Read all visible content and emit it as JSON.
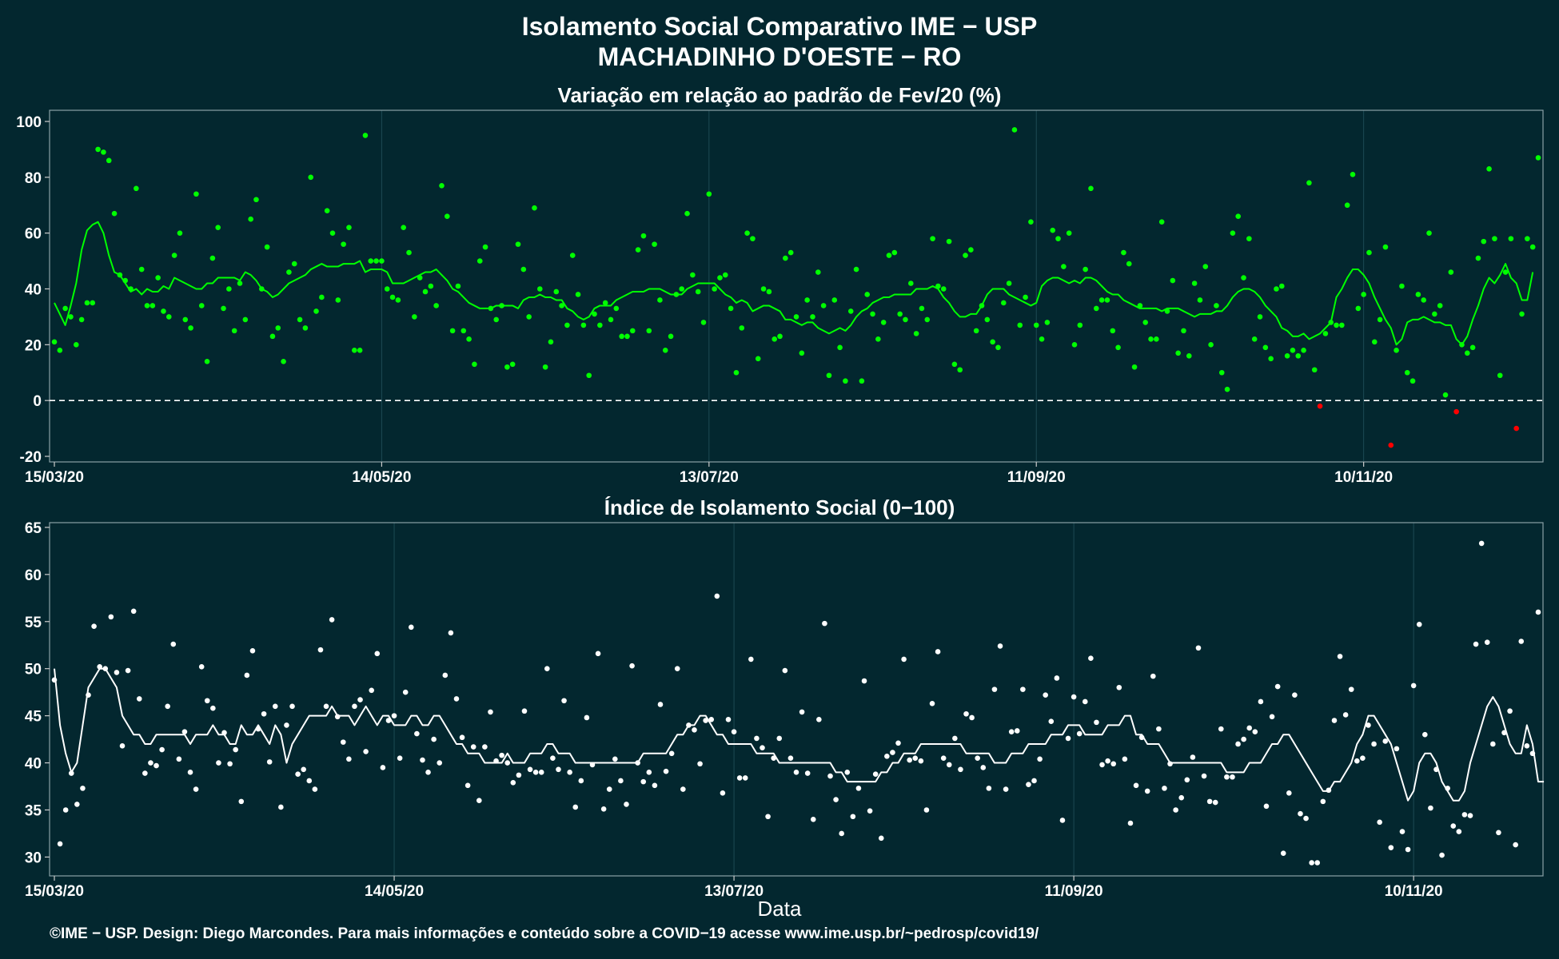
{
  "title_line1": "Isolamento Social Comparativo IME − USP",
  "title_line2": "MACHADINHO D'OESTE − RO",
  "xlabel": "Data",
  "footer": "©IME − USP. Design: Diego Marcondes. Para mais informações e conteúdo sobre a COVID−19 acesse www.ime.usp.br/~pedrosp/covid19/",
  "colors": {
    "background": "#03272f",
    "variation_points": "#00ff00",
    "variation_negative": "#ff0000",
    "index_points": "#ffffff",
    "grid": "#1d4a54"
  },
  "chart_data": [
    {
      "type": "scatter",
      "title": "Variação em relação ao padrão de Fev/20 (%)",
      "xlabel": "",
      "ylabel": "",
      "x_start": "15/03/20",
      "x_end": "09/12/20",
      "ylim": [
        -22,
        104
      ],
      "yticks": [
        -20,
        0,
        20,
        40,
        60,
        80,
        100
      ],
      "xtick_labels": [
        "15/03/20",
        "14/05/20",
        "13/07/20",
        "11/09/20",
        "10/11/20"
      ],
      "xtick_days": [
        0,
        60,
        120,
        180,
        240
      ],
      "reference_line": 0,
      "values": [
        21,
        18,
        33,
        30,
        20,
        29,
        35,
        35,
        90,
        89,
        86,
        67,
        45,
        43,
        40,
        76,
        47,
        34,
        34,
        44,
        32,
        30,
        52,
        60,
        29,
        26,
        74,
        34,
        14,
        51,
        62,
        33,
        40,
        25,
        42,
        29,
        65,
        72,
        40,
        55,
        23,
        26,
        14,
        46,
        49,
        29,
        26,
        80,
        32,
        37,
        68,
        60,
        36,
        56,
        62,
        18,
        18,
        95,
        50,
        50,
        50,
        40,
        37,
        36,
        62,
        53,
        30,
        44,
        39,
        41,
        34,
        77,
        66,
        25,
        41,
        25,
        22,
        13,
        50,
        55,
        33,
        29,
        34,
        12,
        13,
        56,
        47,
        30,
        69,
        40,
        12,
        21,
        39,
        34,
        27,
        52,
        38,
        27,
        9,
        31,
        27,
        35,
        29,
        33,
        23,
        23,
        25,
        54,
        59,
        25,
        56,
        36,
        18,
        23,
        38,
        40,
        67,
        45,
        39,
        28,
        74,
        40,
        44,
        45,
        33,
        10,
        26,
        60,
        58,
        15,
        40,
        39,
        22,
        23,
        51,
        53,
        30,
        17,
        36,
        30,
        46,
        34,
        9,
        36,
        19,
        7,
        32,
        47,
        7,
        38,
        31,
        22,
        28,
        52,
        53,
        31,
        29,
        42,
        24,
        33,
        29,
        58,
        41,
        40,
        57,
        13,
        11,
        52,
        54,
        25,
        34,
        29,
        21,
        19,
        35,
        42,
        97,
        27,
        37,
        64,
        27,
        22,
        28,
        61,
        58,
        48,
        60,
        20,
        27,
        47,
        76,
        33,
        36,
        36,
        25,
        19,
        53,
        49,
        12,
        34,
        28,
        22,
        22,
        64,
        32,
        43,
        17,
        25,
        16,
        42,
        36,
        48,
        20,
        34,
        10,
        4,
        60,
        66,
        44,
        58,
        22,
        30,
        19,
        15,
        40,
        41,
        16,
        18,
        16,
        18,
        78,
        11,
        -2,
        24,
        28,
        27,
        27,
        70,
        81,
        33,
        38,
        53,
        21,
        29,
        55,
        -16,
        18,
        41,
        10,
        7,
        38,
        36,
        60,
        31,
        34,
        2,
        46,
        -4,
        20,
        17,
        19,
        51,
        57,
        83,
        58,
        9,
        46,
        58,
        -10,
        31,
        58,
        55,
        87
      ],
      "moving_average": [
        35,
        31,
        27,
        34,
        42,
        54,
        61,
        63,
        64,
        60,
        52,
        46,
        45,
        42,
        39,
        40,
        38,
        40,
        39,
        39,
        41,
        40,
        44,
        43,
        42,
        41,
        40,
        40,
        42,
        42,
        44,
        44,
        44,
        44,
        43,
        46,
        45,
        43,
        40,
        39,
        37,
        38,
        40,
        42,
        43,
        44,
        45,
        47,
        48,
        49,
        48,
        48,
        48,
        49,
        49,
        49,
        50,
        46,
        47,
        47,
        47,
        46,
        42,
        42,
        42,
        43,
        44,
        45,
        46,
        46,
        47,
        45,
        43,
        40,
        39,
        37,
        35,
        34,
        33,
        33,
        33,
        34,
        34,
        34,
        34,
        33,
        36,
        37,
        37,
        38,
        37,
        37,
        36,
        36,
        33,
        32,
        30,
        29,
        30,
        33,
        34,
        34,
        34,
        36,
        37,
        38,
        39,
        39,
        39,
        40,
        40,
        40,
        39,
        38,
        38,
        38,
        40,
        41,
        42,
        42,
        42,
        42,
        40,
        38,
        37,
        35,
        36,
        35,
        32,
        33,
        34,
        34,
        33,
        32,
        29,
        29,
        28,
        27,
        28,
        28,
        26,
        25,
        24,
        25,
        26,
        25,
        27,
        30,
        32,
        33,
        35,
        36,
        37,
        37,
        38,
        38,
        38,
        38,
        40,
        40,
        40,
        41,
        40,
        37,
        35,
        32,
        30,
        30,
        31,
        31,
        34,
        38,
        40,
        40,
        40,
        38,
        37,
        36,
        35,
        34,
        35,
        41,
        43,
        44,
        44,
        43,
        42,
        43,
        42,
        44,
        44,
        43,
        41,
        39,
        38,
        38,
        36,
        35,
        34,
        33,
        33,
        33,
        33,
        32,
        33,
        33,
        33,
        32,
        31,
        30,
        31,
        31,
        31,
        32,
        32,
        34,
        37,
        39,
        40,
        40,
        39,
        37,
        34,
        32,
        30,
        26,
        25,
        23,
        23,
        24,
        22,
        23,
        24,
        26,
        28,
        37,
        40,
        44,
        47,
        47,
        45,
        42,
        37,
        33,
        29,
        26,
        20,
        22,
        28,
        29,
        29,
        30,
        29,
        28,
        28,
        27,
        27,
        22,
        20,
        23,
        29,
        34,
        40,
        44,
        42,
        45,
        49,
        44,
        42,
        36,
        36,
        46
      ]
    },
    {
      "type": "scatter",
      "title": "Índice de Isolamento Social (0−100)",
      "xlabel": "Data",
      "ylabel": "",
      "x_start": "15/03/20",
      "x_end": "09/12/20",
      "ylim": [
        28,
        65.5
      ],
      "yticks": [
        30,
        35,
        40,
        45,
        50,
        55,
        60,
        65
      ],
      "xtick_labels": [
        "15/03/20",
        "14/05/20",
        "13/07/20",
        "11/09/20",
        "10/11/20"
      ],
      "xtick_days": [
        0,
        60,
        120,
        180,
        240
      ],
      "values": [
        48.8,
        31.4,
        35.0,
        38.9,
        35.6,
        37.3,
        47.2,
        54.5,
        50.2,
        50.0,
        55.5,
        49.6,
        41.8,
        49.8,
        56.1,
        46.8,
        38.9,
        40.0,
        39.7,
        41.4,
        46.0,
        52.6,
        40.4,
        43.3,
        39.0,
        37.2,
        50.2,
        46.6,
        45.8,
        40.0,
        43.2,
        39.9,
        41.4,
        35.9,
        49.3,
        51.9,
        43.6,
        45.2,
        40.1,
        46.0,
        35.3,
        44.0,
        46.0,
        38.8,
        39.3,
        38.1,
        37.2,
        52.0,
        46.0,
        55.2,
        44.9,
        42.2,
        40.4,
        46.0,
        46.7,
        41.2,
        47.7,
        51.6,
        39.5,
        44.5,
        45.0,
        40.5,
        47.5,
        54.4,
        43.1,
        40.3,
        39.0,
        42.5,
        40.0,
        49.3,
        53.8,
        46.8,
        42.7,
        37.6,
        41.7,
        36.0,
        41.7,
        45.4,
        40.2,
        40.8,
        40.0,
        37.9,
        38.7,
        45.5,
        39.3,
        39.0,
        39.0,
        50.0,
        40.5,
        39.3,
        46.6,
        39.0,
        35.3,
        38.1,
        44.8,
        39.8,
        51.6,
        35.1,
        37.2,
        40.4,
        38.1,
        35.6,
        50.3,
        40.0,
        38.0,
        39.0,
        37.6,
        46.2,
        39.1,
        41.0,
        50.0,
        37.2,
        44.0,
        43.5,
        39.9,
        44.5,
        44.6,
        57.7,
        36.8,
        44.6,
        43.3,
        38.4,
        38.4,
        51.0,
        42.6,
        41.6,
        34.3,
        40.5,
        42.6,
        49.8,
        40.5,
        39.0,
        45.4,
        38.9,
        34.0,
        44.6,
        54.8,
        38.6,
        36.1,
        32.5,
        39.0,
        34.3,
        37.3,
        48.7,
        34.9,
        38.8,
        32.0,
        40.7,
        41.1,
        42.1,
        51.0,
        40.3,
        40.5,
        40.2,
        35.0,
        46.3,
        51.8,
        40.5,
        39.8,
        42.6,
        39.3,
        45.2,
        44.8,
        40.5,
        39.5,
        37.3,
        47.8,
        52.4,
        37.2,
        43.3,
        43.4,
        47.8,
        37.7,
        38.1,
        40.4,
        47.2,
        44.4,
        49.0,
        33.9,
        42.6,
        47.0,
        43.1,
        46.5,
        51.1,
        44.3,
        39.8,
        40.2,
        39.9,
        48.0,
        40.4,
        33.6,
        37.6,
        42.7,
        37.0,
        49.2,
        43.6,
        37.3,
        39.9,
        35.0,
        36.3,
        38.2,
        40.6,
        52.2,
        38.6,
        35.9,
        35.8,
        43.6,
        38.5,
        38.5,
        42.0,
        42.5,
        43.7,
        43.3,
        46.5,
        35.4,
        44.9,
        48.1,
        30.4,
        36.8,
        47.2,
        34.6,
        34.1,
        29.4,
        29.4,
        35.9,
        37.1,
        44.5,
        51.3,
        45.1,
        47.8,
        40.2,
        40.5,
        44.0,
        42.0,
        33.7,
        42.3,
        31.0,
        41.5,
        32.7,
        30.8,
        48.2,
        54.7,
        43.0,
        35.2,
        39.3,
        30.2,
        37.3,
        33.3,
        32.7,
        34.5,
        34.4,
        52.6,
        63.3,
        52.8,
        42.0,
        32.6,
        43.2,
        45.5,
        31.3,
        52.9,
        41.8,
        41.0,
        56.0
      ],
      "moving_average": [
        50,
        44,
        41,
        39,
        40,
        44,
        48,
        49,
        50,
        50,
        49,
        48,
        45,
        44,
        43,
        43,
        42,
        42,
        43,
        43,
        43,
        43,
        43,
        43,
        42,
        43,
        43,
        43,
        44,
        43,
        43,
        42,
        42,
        44,
        43,
        43,
        44,
        43,
        42,
        44,
        43,
        40,
        42,
        43,
        44,
        45,
        45,
        45,
        45,
        46,
        45,
        45,
        45,
        44,
        45,
        46,
        45,
        44,
        45,
        45,
        44,
        44,
        44,
        45,
        45,
        44,
        44,
        45,
        45,
        44,
        43,
        42,
        42,
        41,
        41,
        41,
        40,
        40,
        40,
        40,
        41,
        40,
        40,
        40,
        41,
        41,
        41,
        42,
        42,
        41,
        41,
        41,
        40,
        40,
        40,
        40,
        40,
        40,
        40,
        40,
        40,
        40,
        40,
        40,
        41,
        41,
        41,
        41,
        41,
        42,
        43,
        43,
        44,
        44,
        45,
        45,
        44,
        43,
        43,
        42,
        42,
        42,
        42,
        42,
        41,
        41,
        41,
        41,
        40,
        40,
        40,
        40,
        40,
        40,
        40,
        40,
        40,
        40,
        39,
        39,
        38,
        38,
        38,
        38,
        38,
        38,
        39,
        39,
        40,
        40,
        41,
        41,
        41,
        42,
        42,
        42,
        42,
        42,
        42,
        42,
        42,
        41,
        41,
        41,
        41,
        41,
        40,
        40,
        40,
        41,
        41,
        41,
        42,
        42,
        42,
        42,
        43,
        43,
        43,
        44,
        44,
        44,
        43,
        43,
        43,
        43,
        44,
        44,
        44,
        45,
        45,
        43,
        43,
        42,
        42,
        42,
        41,
        40,
        40,
        40,
        40,
        40,
        40,
        40,
        40,
        40,
        40,
        39,
        39,
        39,
        39,
        40,
        40,
        40,
        41,
        42,
        42,
        43,
        43,
        42,
        41,
        40,
        39,
        38,
        37,
        37,
        38,
        38,
        39,
        40,
        42,
        43,
        45,
        45,
        44,
        43,
        42,
        40,
        38,
        36,
        37,
        40,
        41,
        41,
        40,
        38,
        37,
        36,
        36,
        37,
        40,
        42,
        44,
        46,
        47,
        46,
        44,
        42,
        41,
        41,
        44,
        42,
        38,
        38
      ]
    }
  ]
}
